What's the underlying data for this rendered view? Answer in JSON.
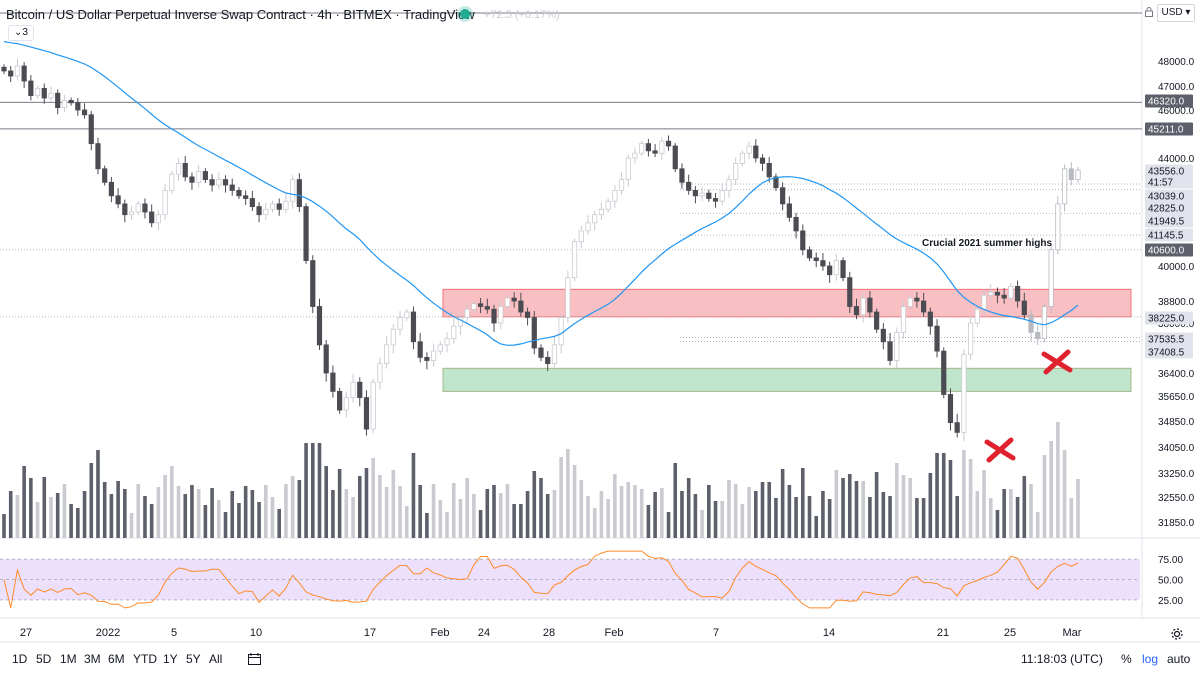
{
  "header": {
    "title": "Bitcoin / US Dollar Perpetual Inverse Swap Contract · 4h · BITMEX · TradingView",
    "change": "+72.5 (+0.17%)",
    "collapse_label": "3",
    "currency": "USD"
  },
  "chart_data": {
    "type": "candlestick",
    "symbol": "Bitcoin / US Dollar Perpetual Inverse Swap Contract",
    "interval": "4h",
    "exchange": "BITMEX",
    "price_axis_ticks": [
      "48000.0",
      "47000.0",
      "46000.0",
      "44000.0",
      "40000.0",
      "38800.0",
      "38000.0",
      "36400.0",
      "35650.0",
      "34850.0",
      "34050.0",
      "33250.0",
      "32550.0",
      "31850.0"
    ],
    "price_labels": [
      {
        "value": "46320.0",
        "style": "dark"
      },
      {
        "value": "45211.0",
        "style": "dark"
      },
      {
        "value": "43556.0",
        "style": "light"
      },
      {
        "value": "41:57",
        "style": "light"
      },
      {
        "value": "43039.0",
        "style": "light"
      },
      {
        "value": "42825.0",
        "style": "light"
      },
      {
        "value": "41949.5",
        "style": "light"
      },
      {
        "value": "41145.5",
        "style": "light"
      },
      {
        "value": "40600.0",
        "style": "dark"
      },
      {
        "value": "38225.0",
        "style": "light"
      },
      {
        "value": "37535.5",
        "style": "light"
      },
      {
        "value": "37408.5",
        "style": "light"
      }
    ],
    "horizontal_levels": [
      46320,
      45211,
      43039,
      42825,
      41949.5,
      41145.5,
      40600,
      38225,
      37535.5,
      37408.5
    ],
    "zones": [
      {
        "name": "resistance",
        "from": 38225,
        "to": 39200,
        "color": "#f7a9ad"
      },
      {
        "name": "support",
        "from": 35800,
        "to": 36550,
        "color": "#a9dcbb"
      }
    ],
    "annotation": "Crucial 2021 summer highs",
    "markers": [
      "x",
      "x"
    ],
    "time_axis_labels": [
      "27",
      "2022",
      "5",
      "10",
      "17",
      "Feb",
      "24",
      "28",
      "Feb",
      "7",
      "14",
      "21",
      "25",
      "Mar"
    ],
    "close_series": [
      47600,
      47400,
      47800,
      47200,
      46600,
      46900,
      46500,
      46700,
      46100,
      46400,
      46300,
      46000,
      45800,
      44600,
      43600,
      43100,
      42600,
      42300,
      41900,
      42000,
      42300,
      42000,
      41600,
      41900,
      42800,
      43400,
      43800,
      43300,
      43100,
      43500,
      43200,
      43000,
      43200,
      43000,
      42800,
      42600,
      42500,
      42200,
      41900,
      42100,
      42300,
      42100,
      42400,
      43200,
      42200,
      40200,
      38600,
      37300,
      36400,
      35800,
      35200,
      35600,
      36100,
      35600,
      34600,
      36100,
      36700,
      37300,
      37800,
      38200,
      38400,
      37400,
      36900,
      36800,
      37100,
      37300,
      37500,
      37900,
      38200,
      38500,
      38700,
      38600,
      38500,
      38000,
      38600,
      38900,
      38800,
      38400,
      38200,
      37200,
      36900,
      36700,
      37300,
      38200,
      39600,
      40900,
      41300,
      41600,
      41900,
      42100,
      42400,
      42800,
      43200,
      44000,
      44200,
      44600,
      44300,
      44200,
      44700,
      44500,
      43600,
      43100,
      42800,
      42600,
      42700,
      42500,
      42400,
      42800,
      43200,
      43800,
      44200,
      44500,
      44000,
      43800,
      43300,
      42900,
      42300,
      41800,
      41300,
      40600,
      40300,
      40200,
      40000,
      39700,
      40200,
      39600,
      38600,
      38300,
      38900,
      38400,
      37800,
      37400,
      36800,
      37700,
      38600,
      38900,
      38800,
      38400,
      37900,
      37100,
      35700,
      34800,
      34500,
      37000,
      38000,
      38500,
      39000,
      39100,
      39000,
      38900,
      39300,
      38800,
      38300,
      37700,
      37500,
      38600,
      40600,
      42300,
      43600,
      43200,
      43550
    ],
    "rsi": {
      "upper": 75.0,
      "middle": 50.0,
      "lower": 25.0,
      "band_color": "#e7d8fb",
      "line_color": "#ff8a2a"
    },
    "moving_average_color": "#2196f3"
  },
  "toolbar": {
    "timeframes": [
      "1D",
      "5D",
      "1M",
      "3M",
      "6M",
      "YTD",
      "1Y",
      "5Y",
      "All"
    ],
    "clock": "11:18:03 (UTC)",
    "percent_label": "%",
    "log_label": "log",
    "auto_label": "auto"
  },
  "icons": {
    "lock": "lock-icon",
    "settings": "gear-icon",
    "date_range": "date-range-icon"
  }
}
